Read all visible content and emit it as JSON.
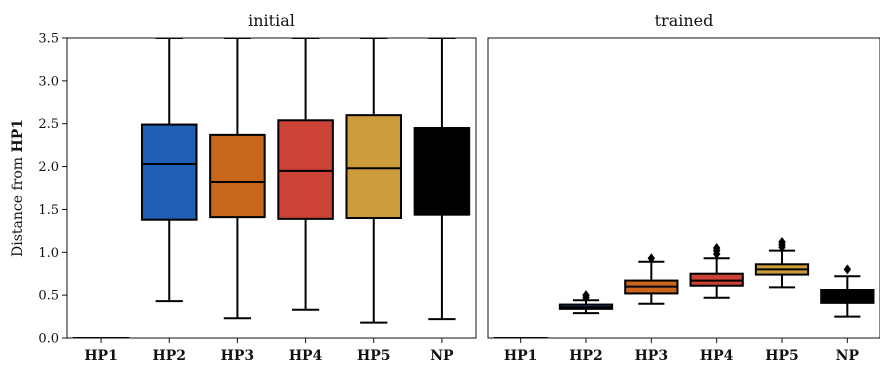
{
  "chart_data": [
    {
      "type": "box",
      "title": "initial",
      "ylabel_prefix": "Distance from",
      "ylabel_bold": "HP1",
      "ylim": [
        0.0,
        3.5
      ],
      "yticks": [
        "0.0",
        "0.5",
        "1.0",
        "1.5",
        "2.0",
        "2.5",
        "3.0",
        "3.5"
      ],
      "categories": [
        "HP1",
        "HP2",
        "HP3",
        "HP4",
        "HP5",
        "NP"
      ],
      "boxes": [
        {
          "label": "HP1",
          "color": "#000000",
          "whislo": 0.0,
          "q1": 0.0,
          "med": 0.0,
          "q3": 0.0,
          "whishi": 0.0,
          "fliers": []
        },
        {
          "label": "HP2",
          "color": "#1f5fb4",
          "whislo": 0.43,
          "q1": 1.38,
          "med": 2.03,
          "q3": 2.49,
          "whishi": 3.5,
          "fliers": []
        },
        {
          "label": "HP3",
          "color": "#c8661c",
          "whislo": 0.23,
          "q1": 1.41,
          "med": 1.82,
          "q3": 2.37,
          "whishi": 3.5,
          "fliers": []
        },
        {
          "label": "HP4",
          "color": "#cc4236",
          "whislo": 0.33,
          "q1": 1.39,
          "med": 1.95,
          "q3": 2.54,
          "whishi": 3.5,
          "fliers": []
        },
        {
          "label": "HP5",
          "color": "#cc9c3a",
          "whislo": 0.18,
          "q1": 1.4,
          "med": 1.98,
          "q3": 2.6,
          "whishi": 3.5,
          "fliers": []
        },
        {
          "label": "NP",
          "color": "#000000",
          "whislo": 0.22,
          "q1": 1.44,
          "med": 1.44,
          "q3": 2.45,
          "whishi": 3.5,
          "fliers": []
        }
      ]
    },
    {
      "type": "box",
      "title": "trained",
      "ylim": [
        0.0,
        3.5
      ],
      "categories": [
        "HP1",
        "HP2",
        "HP3",
        "HP4",
        "HP5",
        "NP"
      ],
      "boxes": [
        {
          "label": "HP1",
          "color": "#000000",
          "whislo": 0.0,
          "q1": 0.0,
          "med": 0.0,
          "q3": 0.0,
          "whishi": 0.0,
          "fliers": []
        },
        {
          "label": "HP2",
          "color": "#1f5fb4",
          "whislo": 0.29,
          "q1": 0.34,
          "med": 0.36,
          "q3": 0.39,
          "whishi": 0.44,
          "fliers": [
            0.47,
            0.5
          ]
        },
        {
          "label": "HP3",
          "color": "#c8661c",
          "whislo": 0.4,
          "q1": 0.52,
          "med": 0.6,
          "q3": 0.67,
          "whishi": 0.89,
          "fliers": [
            0.93
          ]
        },
        {
          "label": "HP4",
          "color": "#cc4236",
          "whislo": 0.47,
          "q1": 0.61,
          "med": 0.67,
          "q3": 0.75,
          "whishi": 0.93,
          "fliers": [
            0.98,
            1.02,
            1.05
          ]
        },
        {
          "label": "HP5",
          "color": "#cc9c3a",
          "whislo": 0.59,
          "q1": 0.74,
          "med": 0.8,
          "q3": 0.86,
          "whishi": 1.02,
          "fliers": [
            1.06,
            1.09,
            1.12
          ]
        },
        {
          "label": "NP",
          "color": "#000000",
          "whislo": 0.25,
          "q1": 0.41,
          "med": 0.47,
          "q3": 0.56,
          "whishi": 0.72,
          "fliers": [
            0.8
          ]
        }
      ]
    }
  ]
}
